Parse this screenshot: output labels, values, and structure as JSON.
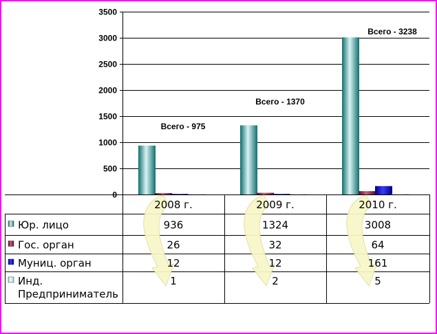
{
  "chart_data": {
    "type": "bar",
    "categories": [
      "2008 г.",
      "2009 г.",
      "2010 г."
    ],
    "series": [
      {
        "name": "Юр. лицо",
        "color": "#1a8a8a",
        "values": [
          936,
          1324,
          3008
        ]
      },
      {
        "name": "Гос. орган",
        "color": "#8b1a3a",
        "values": [
          26,
          32,
          64
        ]
      },
      {
        "name": "Муниц. орган",
        "color": "#0000cc",
        "values": [
          12,
          12,
          161
        ]
      },
      {
        "name": "Инд. Предприниматель",
        "color": "#cceeee",
        "values": [
          1,
          2,
          5
        ]
      }
    ],
    "totals": [
      "Всего - 975",
      "Всего - 1370",
      "Всего - 3238"
    ],
    "yticks": [
      "0",
      "500",
      "1000",
      "1500",
      "2000",
      "2500",
      "3000",
      "3500"
    ],
    "ylim": [
      0,
      3500
    ],
    "grid": true,
    "legend": "table-below",
    "table": {
      "rows": [
        {
          "label_lines": [
            "Юр. лицо"
          ],
          "cells": [
            "936",
            "1324",
            "3008"
          ]
        },
        {
          "label_lines": [
            "Гос. орган"
          ],
          "cells": [
            "26",
            "32",
            "64"
          ]
        },
        {
          "label_lines": [
            "Муниц. орган"
          ],
          "cells": [
            "12",
            "12",
            "161"
          ]
        },
        {
          "label_lines": [
            "Инд.",
            "Предприниматель"
          ],
          "cells": [
            "1",
            "2",
            "5"
          ]
        }
      ]
    }
  },
  "colors": {
    "frame": "#ff00ff",
    "arrow": "#f8f7c8",
    "arrow_stroke": "#e0dda0"
  }
}
